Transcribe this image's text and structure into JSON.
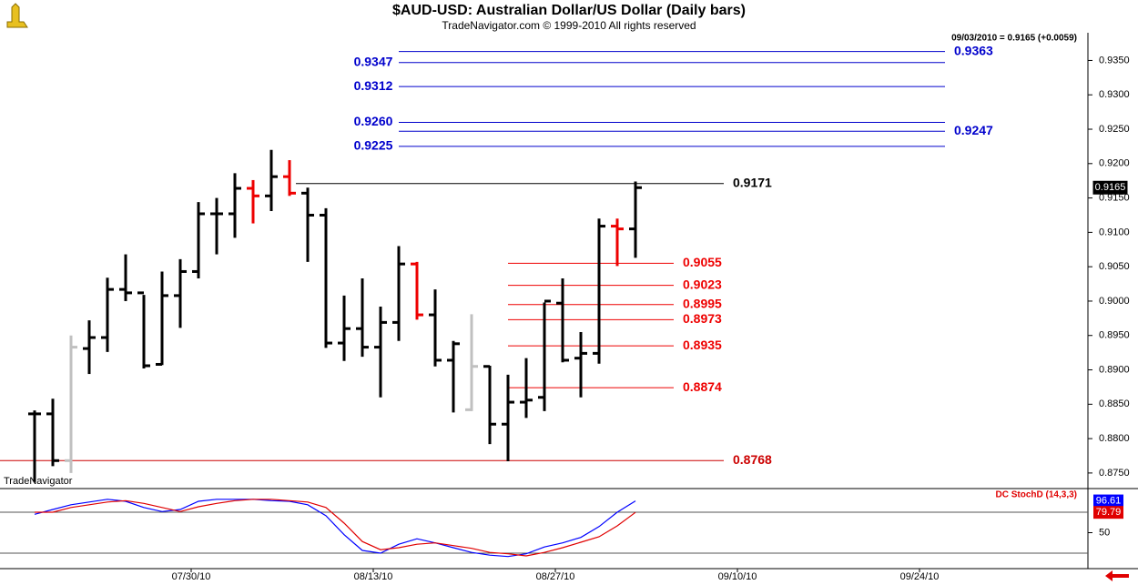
{
  "chart_data": [
    {
      "type": "ohlc",
      "title": "$AUD-USD:  Australian Dollar/US Dollar  (Daily bars)",
      "subtitle": "TradeNavigator.com © 1999-2010 All rights reserved",
      "watermark": "TradeNavigator",
      "annotation": "09/03/2010 = 0.9165 (+0.0059)",
      "series": {
        "open": [
          0.8836,
          0.8836,
          0.8768,
          0.8931,
          0.8947,
          0.9017,
          0.9012,
          0.8908,
          0.9008,
          0.9043,
          0.9127,
          0.9127,
          0.9164,
          0.9153,
          0.9181,
          0.9157,
          0.9125,
          0.8939,
          0.896,
          0.8933,
          0.8969,
          0.9054,
          0.898,
          0.8914,
          0.8842,
          0.8905,
          0.8821,
          0.8853,
          0.886,
          0.8997,
          0.8917,
          0.8924,
          0.9109,
          0.9105
        ],
        "high": [
          0.8841,
          0.8858,
          0.895,
          0.8972,
          0.9034,
          0.9068,
          0.9009,
          0.9043,
          0.9061,
          0.9144,
          0.915,
          0.9186,
          0.9176,
          0.922,
          0.9205,
          0.9165,
          0.9135,
          0.9008,
          0.9033,
          0.8992,
          0.908,
          0.9057,
          0.9017,
          0.8942,
          0.8981,
          0.8906,
          0.8893,
          0.8917,
          0.8998,
          0.9033,
          0.8955,
          0.912,
          0.912,
          0.9174
        ],
        "low": [
          0.8737,
          0.876,
          0.875,
          0.8894,
          0.8926,
          0.9,
          0.8902,
          0.8907,
          0.8961,
          0.9033,
          0.9068,
          0.9092,
          0.9113,
          0.9131,
          0.9153,
          0.9057,
          0.8932,
          0.8913,
          0.8919,
          0.886,
          0.8942,
          0.8973,
          0.8905,
          0.8838,
          0.884,
          0.8792,
          0.8767,
          0.883,
          0.884,
          0.8911,
          0.886,
          0.8909,
          0.9051,
          0.9063
        ],
        "close": [
          0.8836,
          0.8768,
          0.8933,
          0.8947,
          0.9017,
          0.9012,
          0.8906,
          0.9008,
          0.9043,
          0.9127,
          0.9127,
          0.9164,
          0.9153,
          0.9181,
          0.9157,
          0.9125,
          0.8939,
          0.896,
          0.8933,
          0.8969,
          0.9054,
          0.898,
          0.8914,
          0.8938,
          0.8905,
          0.8821,
          0.8853,
          0.8856,
          0.9,
          0.8914,
          0.8924,
          0.9109,
          0.9105,
          0.9165
        ],
        "colors": [
          "#000000",
          "#000000",
          "#c0c0c0",
          "#000000",
          "#000000",
          "#000000",
          "#000000",
          "#000000",
          "#000000",
          "#000000",
          "#000000",
          "#000000",
          "#ee0000",
          "#000000",
          "#ee0000",
          "#000000",
          "#000000",
          "#000000",
          "#000000",
          "#000000",
          "#000000",
          "#ee0000",
          "#000000",
          "#000000",
          "#c0c0c0",
          "#000000",
          "#000000",
          "#000000",
          "#000000",
          "#000000",
          "#000000",
          "#000000",
          "#ee0000",
          "#000000"
        ]
      },
      "xlim": [
        -1.9,
        57.85
      ],
      "xticks": [
        {
          "value": 8.6,
          "label": "07/30/10"
        },
        {
          "value": 18.6,
          "label": "08/13/10"
        },
        {
          "value": 28.6,
          "label": "08/27/10"
        },
        {
          "value": 38.6,
          "label": "09/10/10"
        },
        {
          "value": 48.6,
          "label": "09/24/10"
        }
      ],
      "ylim": [
        0.873,
        0.9385
      ],
      "yticks": [
        {
          "value": 0.935,
          "label": "0.9350"
        },
        {
          "value": 0.93,
          "label": "0.9300"
        },
        {
          "value": 0.925,
          "label": "0.9250"
        },
        {
          "value": 0.92,
          "label": "0.9200"
        },
        {
          "value": 0.915,
          "label": "0.9150"
        },
        {
          "value": 0.91,
          "label": "0.9100"
        },
        {
          "value": 0.905,
          "label": "0.9050"
        },
        {
          "value": 0.9,
          "label": "0.9000"
        },
        {
          "value": 0.895,
          "label": "0.8950"
        },
        {
          "value": 0.89,
          "label": "0.8900"
        },
        {
          "value": 0.885,
          "label": "0.8850"
        },
        {
          "value": 0.88,
          "label": "0.8800"
        },
        {
          "value": 0.875,
          "label": "0.8750"
        }
      ],
      "levels": [
        {
          "color": "#0000cc",
          "lines": [
            {
              "value": 0.9363,
              "label": "0.9363",
              "side": "right"
            },
            {
              "value": 0.9347,
              "label": "0.9347",
              "side": "left"
            },
            {
              "value": 0.9312,
              "label": "0.9312",
              "side": "left"
            },
            {
              "value": 0.926,
              "label": "0.9260",
              "side": "left"
            },
            {
              "value": 0.9247,
              "label": "0.9247",
              "side": "right"
            },
            {
              "value": 0.9225,
              "label": "0.9225",
              "side": "left"
            }
          ]
        },
        {
          "color": "#000000",
          "lines": [
            {
              "value": 0.9171,
              "label": "0.9171",
              "side": "right"
            }
          ]
        },
        {
          "color": "#ee0000",
          "lines": [
            {
              "value": 0.9055,
              "label": "0.9055",
              "side": "right"
            },
            {
              "value": 0.9023,
              "label": "0.9023",
              "side": "right"
            },
            {
              "value": 0.8995,
              "label": "0.8995",
              "side": "right"
            },
            {
              "value": 0.8973,
              "label": "0.8973",
              "side": "right"
            },
            {
              "value": 0.8935,
              "label": "0.8935",
              "side": "right"
            },
            {
              "value": 0.8874,
              "label": "0.8874",
              "side": "right"
            }
          ]
        },
        {
          "color": "#cc0000",
          "lines": [
            {
              "value": 0.8768,
              "label": "0.8768",
              "side": "right"
            }
          ]
        }
      ]
    },
    {
      "type": "line",
      "title": "DC StochD (14,3,3)",
      "series": [
        {
          "color": "#0000ff",
          "values": [
            77,
            84,
            91,
            95,
            99,
            96,
            87,
            81,
            84,
            96,
            99,
            99,
            99,
            97,
            96,
            91,
            75,
            47,
            24,
            20,
            33,
            41,
            35,
            28,
            21,
            17,
            15,
            19,
            29,
            35,
            43,
            59,
            80,
            96.61
          ]
        },
        {
          "color": "#e00000",
          "values": [
            80,
            80,
            87,
            91,
            95,
            97,
            93,
            87,
            81,
            88,
            93,
            97,
            99,
            99,
            97,
            95,
            87,
            64,
            37,
            25,
            28,
            33,
            35,
            31,
            27,
            21,
            19,
            16,
            21,
            28,
            36,
            44,
            60,
            79.79
          ]
        }
      ],
      "ylim": [
        -2.7,
        114.7
      ],
      "yticks": [
        50
      ],
      "ref_lines": [
        80,
        20
      ]
    }
  ]
}
